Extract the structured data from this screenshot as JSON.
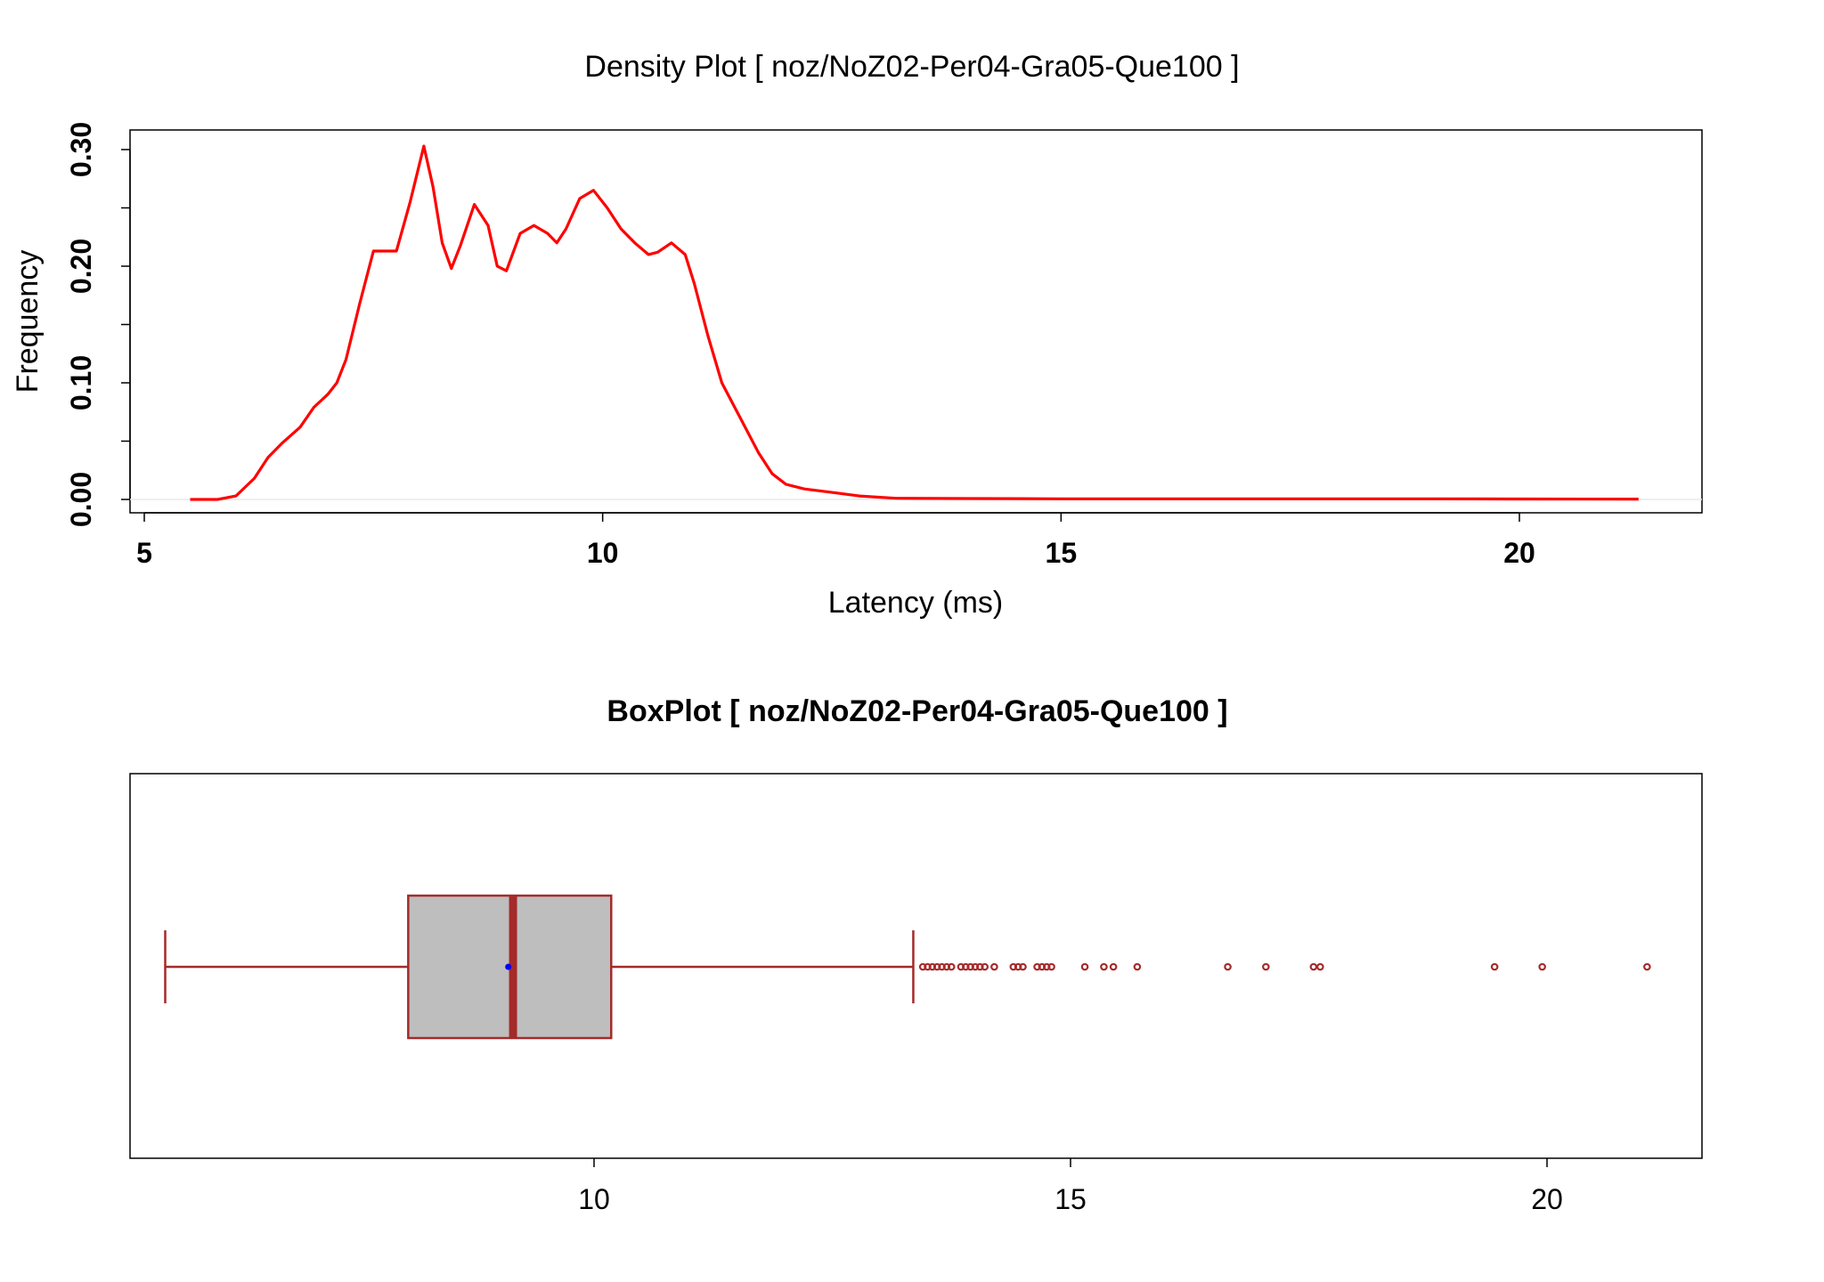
{
  "chart_data": [
    {
      "type": "line",
      "title": "Density Plot [ noz/NoZ02-Per04-Gra05-Que100 ]",
      "xlabel": "Latency (ms)",
      "ylabel": "Frequency",
      "xlim": [
        5,
        22
      ],
      "ylim": [
        0,
        0.31
      ],
      "x_ticks": [
        "5",
        "10",
        "15",
        "20"
      ],
      "y_ticks": [
        "0.00",
        "0.10",
        "0.20",
        "0.30"
      ],
      "color": "#ff0000",
      "series": [
        {
          "x": [
            5.5,
            5.8,
            6.0,
            6.2,
            6.35,
            6.5,
            6.7,
            6.85,
            7.0,
            7.1,
            7.2,
            7.35,
            7.5,
            7.6,
            7.75,
            7.9,
            8.05,
            8.15,
            8.25,
            8.35,
            8.45,
            8.6,
            8.75,
            8.85,
            8.95,
            9.1,
            9.25,
            9.4,
            9.5,
            9.6,
            9.75,
            9.9,
            10.05,
            10.2,
            10.35,
            10.5,
            10.6,
            10.75,
            10.9,
            11.0,
            11.15,
            11.3,
            11.5,
            11.7,
            11.85,
            12.0,
            12.2,
            12.5,
            12.8,
            13.2,
            14.0,
            15.0,
            16.0,
            17.0,
            18.0,
            19.0,
            20.0,
            21.3
          ],
          "y": [
            0.0,
            0.0,
            0.003,
            0.018,
            0.036,
            0.048,
            0.062,
            0.079,
            0.09,
            0.1,
            0.12,
            0.168,
            0.213,
            0.213,
            0.213,
            0.255,
            0.303,
            0.268,
            0.22,
            0.198,
            0.218,
            0.253,
            0.235,
            0.2,
            0.196,
            0.228,
            0.235,
            0.228,
            0.22,
            0.232,
            0.258,
            0.265,
            0.25,
            0.232,
            0.22,
            0.21,
            0.212,
            0.22,
            0.21,
            0.185,
            0.14,
            0.1,
            0.07,
            0.04,
            0.022,
            0.013,
            0.009,
            0.006,
            0.003,
            0.001,
            0.0008,
            0.0005,
            0.0005,
            0.0005,
            0.0005,
            0.0005,
            0.0004,
            0.0003
          ]
        }
      ]
    },
    {
      "type": "box",
      "title": "BoxPlot [ noz/NoZ02-Per04-Gra05-Que100 ]",
      "xlim": [
        6.0,
        21.8
      ],
      "x_ticks": [
        "10",
        "15",
        "20"
      ],
      "whisker_low": 5.5,
      "q1": 8.05,
      "median": 9.15,
      "mean": 9.1,
      "q3": 10.18,
      "whisker_high": 13.35,
      "outliers": [
        13.45,
        13.5,
        13.55,
        13.6,
        13.65,
        13.7,
        13.75,
        13.85,
        13.9,
        13.95,
        14.0,
        14.05,
        14.1,
        14.2,
        14.4,
        14.45,
        14.5,
        14.65,
        14.7,
        14.75,
        14.8,
        15.15,
        15.35,
        15.45,
        15.7,
        16.65,
        17.05,
        17.55,
        17.62,
        19.45,
        19.95,
        21.05
      ],
      "box_fill": "#bebebe",
      "border_color": "#a52a2a",
      "mean_color": "#0000ff"
    }
  ]
}
